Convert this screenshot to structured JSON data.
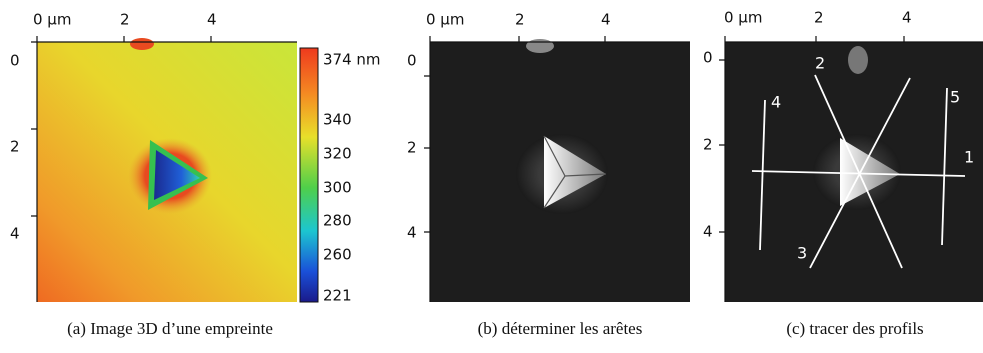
{
  "panels": [
    {
      "caption": "(a)  Image 3D d’une empreinte",
      "x_ticks": [
        "0 µm",
        "2",
        "4"
      ],
      "y_ticks": [
        "0",
        "2",
        "4"
      ],
      "colorbar": [
        "374 nm",
        "340",
        "320",
        "300",
        "280",
        "260",
        "221"
      ]
    },
    {
      "caption": "(b)  déterminer les arêtes",
      "x_ticks": [
        "0 µm",
        "2",
        "4"
      ],
      "y_ticks": [
        "0",
        "2",
        "4"
      ]
    },
    {
      "caption": "(c)  tracer des profils",
      "x_ticks": [
        "0 µm",
        "2",
        "4"
      ],
      "y_ticks": [
        "0",
        "2",
        "4"
      ],
      "profiles": [
        "1",
        "2",
        "3",
        "4",
        "5"
      ]
    }
  ]
}
